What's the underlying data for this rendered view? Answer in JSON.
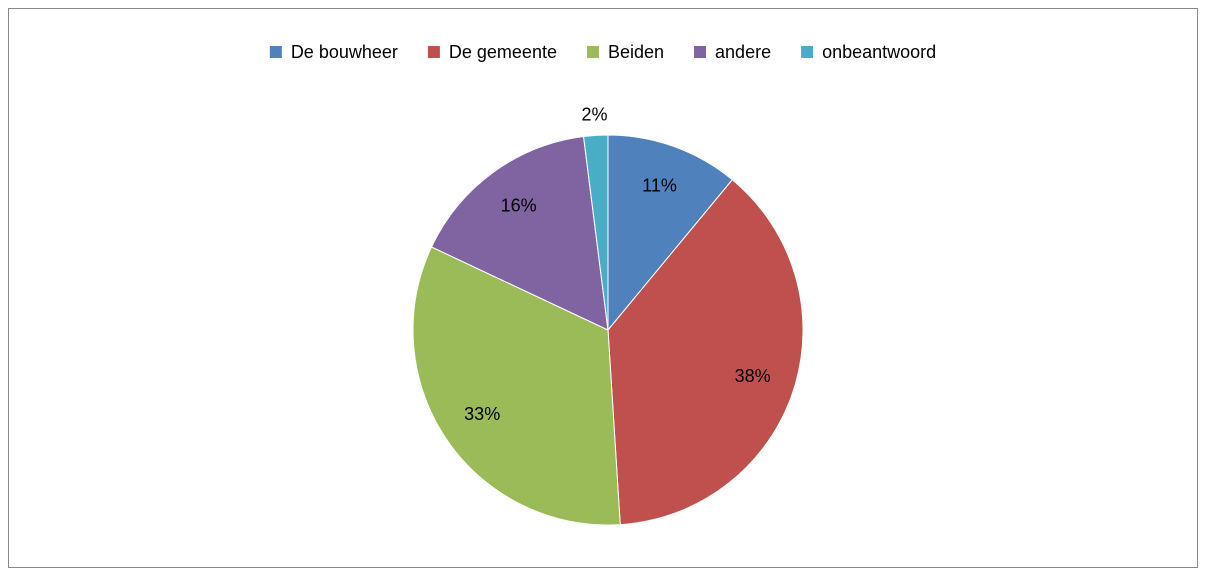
{
  "chart_data": {
    "type": "pie",
    "categories": [
      "De bouwheer",
      "De gemeente",
      "Beiden",
      "andere",
      "onbeantwoord"
    ],
    "values": [
      11,
      38,
      33,
      16,
      2
    ],
    "value_labels": [
      "11%",
      "38%",
      "33%",
      "16%",
      "2%"
    ],
    "colors": [
      "#4f81bd",
      "#c0504d",
      "#9bbb59",
      "#8064a2",
      "#4bacc6"
    ],
    "legend": "top"
  }
}
